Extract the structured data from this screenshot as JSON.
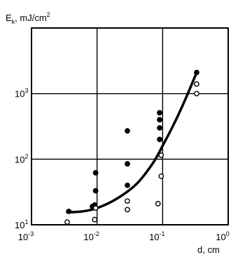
{
  "chart_data": {
    "type": "scatter",
    "title": "",
    "ylabel": "E",
    "ylabel_subscript": "k",
    "ylabel_unit": ", mJ/cm",
    "ylabel_unit_superscript": "2",
    "xlabel": "d, cm",
    "x_scale": "log",
    "y_scale": "log",
    "xlim": [
      0.001,
      1
    ],
    "ylim": [
      10,
      10000
    ],
    "grid": true,
    "x_ticks": [
      {
        "value": 0.001,
        "base": "10",
        "exp": "-3"
      },
      {
        "value": 0.01,
        "base": "10",
        "exp": "-2"
      },
      {
        "value": 0.1,
        "base": "10",
        "exp": "-1"
      },
      {
        "value": 1,
        "base": "10",
        "exp": "0"
      }
    ],
    "y_ticks": [
      {
        "value": 10,
        "base": "10",
        "exp": "1"
      },
      {
        "value": 100,
        "base": "10",
        "exp": "2"
      },
      {
        "value": 1000,
        "base": "10",
        "exp": "3"
      }
    ],
    "series": [
      {
        "marker": "filled-circle",
        "points": [
          {
            "x": 0.0037,
            "y": 16
          },
          {
            "x": 0.0085,
            "y": 19
          },
          {
            "x": 0.0092,
            "y": 20
          },
          {
            "x": 0.0095,
            "y": 33
          },
          {
            "x": 0.0095,
            "y": 62
          },
          {
            "x": 0.029,
            "y": 40
          },
          {
            "x": 0.029,
            "y": 85
          },
          {
            "x": 0.029,
            "y": 270
          },
          {
            "x": 0.09,
            "y": 200
          },
          {
            "x": 0.09,
            "y": 300
          },
          {
            "x": 0.09,
            "y": 400
          },
          {
            "x": 0.09,
            "y": 510
          },
          {
            "x": 0.33,
            "y": 2100
          }
        ]
      },
      {
        "marker": "open-circle",
        "points": [
          {
            "x": 0.0035,
            "y": 11
          },
          {
            "x": 0.0092,
            "y": 12
          },
          {
            "x": 0.0095,
            "y": 18
          },
          {
            "x": 0.029,
            "y": 17
          },
          {
            "x": 0.029,
            "y": 23
          },
          {
            "x": 0.085,
            "y": 21
          },
          {
            "x": 0.095,
            "y": 55
          },
          {
            "x": 0.095,
            "y": 115
          },
          {
            "x": 0.33,
            "y": 1000
          },
          {
            "x": 0.33,
            "y": 1400
          }
        ]
      },
      {
        "marker": "line",
        "points": [
          {
            "x": 0.0035,
            "y": 15.5
          },
          {
            "x": 0.006,
            "y": 16
          },
          {
            "x": 0.01,
            "y": 18
          },
          {
            "x": 0.02,
            "y": 25
          },
          {
            "x": 0.04,
            "y": 42
          },
          {
            "x": 0.07,
            "y": 85
          },
          {
            "x": 0.1,
            "y": 160
          },
          {
            "x": 0.15,
            "y": 350
          },
          {
            "x": 0.22,
            "y": 800
          },
          {
            "x": 0.33,
            "y": 2100
          }
        ]
      }
    ]
  }
}
